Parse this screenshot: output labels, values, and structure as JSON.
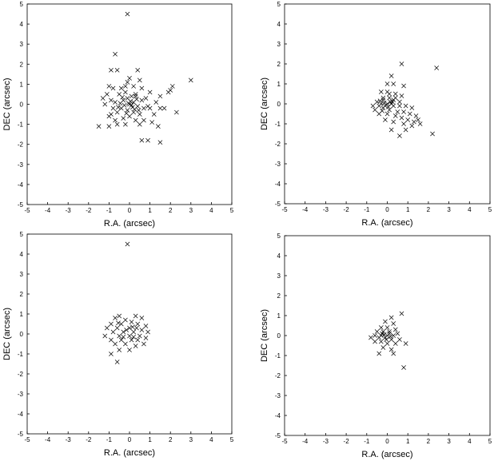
{
  "chart_data": [
    {
      "type": "scatter",
      "xlabel": "R.A. (arcsec)",
      "ylabel": "DEC (arcsec)",
      "xlim": [
        -5,
        5
      ],
      "ylim": [
        -5,
        5
      ],
      "xticks": [
        "-5",
        "-4",
        "-3",
        "-2",
        "-1",
        "0",
        "1",
        "2",
        "3",
        "4",
        "5"
      ],
      "yticks": [
        "-5",
        "-4",
        "-3",
        "-2",
        "-1",
        "0",
        "1",
        "2",
        "3",
        "4",
        "5"
      ],
      "marker": "x",
      "grid": false,
      "points": [
        [
          -0.1,
          4.5
        ],
        [
          -0.7,
          2.5
        ],
        [
          -0.9,
          1.7
        ],
        [
          -0.6,
          1.7
        ],
        [
          0.4,
          1.7
        ],
        [
          3.0,
          1.2
        ],
        [
          0.0,
          1.3
        ],
        [
          -0.1,
          1.1
        ],
        [
          0.5,
          1.2
        ],
        [
          -1.0,
          0.9
        ],
        [
          -0.8,
          0.8
        ],
        [
          -0.4,
          0.8
        ],
        [
          0.2,
          0.9
        ],
        [
          0.6,
          0.8
        ],
        [
          1.0,
          0.6
        ],
        [
          2.1,
          0.9
        ],
        [
          1.9,
          0.6
        ],
        [
          2.0,
          0.7
        ],
        [
          1.5,
          0.4
        ],
        [
          1.3,
          0.1
        ],
        [
          1.7,
          -0.2
        ],
        [
          1.5,
          -0.2
        ],
        [
          2.3,
          -0.4
        ],
        [
          1.0,
          -0.2
        ],
        [
          0.9,
          -0.1
        ],
        [
          0.6,
          0.2
        ],
        [
          0.3,
          0.5
        ],
        [
          0.1,
          0.4
        ],
        [
          -0.2,
          0.6
        ],
        [
          -0.5,
          0.5
        ],
        [
          -1.1,
          0.5
        ],
        [
          -0.9,
          0.2
        ],
        [
          -1.2,
          0.0
        ],
        [
          -0.7,
          0.1
        ],
        [
          -0.3,
          0.2
        ],
        [
          0.0,
          0.0
        ],
        [
          0.2,
          0.1
        ],
        [
          0.4,
          -0.1
        ],
        [
          0.7,
          -0.2
        ],
        [
          0.5,
          -0.5
        ],
        [
          0.2,
          -0.4
        ],
        [
          -0.1,
          -0.3
        ],
        [
          -0.4,
          -0.2
        ],
        [
          -0.6,
          -0.4
        ],
        [
          -0.9,
          -0.5
        ],
        [
          -1.0,
          -0.6
        ],
        [
          -0.7,
          -0.8
        ],
        [
          -0.3,
          -0.7
        ],
        [
          0.0,
          -0.6
        ],
        [
          0.3,
          -0.8
        ],
        [
          0.7,
          -0.8
        ],
        [
          1.1,
          -0.9
        ],
        [
          1.4,
          -1.1
        ],
        [
          -1.5,
          -1.1
        ],
        [
          -1.0,
          -1.1
        ],
        [
          -0.6,
          -1.0
        ],
        [
          -0.2,
          -1.0
        ],
        [
          0.5,
          -1.0
        ],
        [
          0.6,
          -1.8
        ],
        [
          0.9,
          -1.8
        ],
        [
          1.5,
          -1.9
        ],
        [
          -0.1,
          0.3
        ],
        [
          0.15,
          -0.15
        ],
        [
          -0.25,
          -0.05
        ],
        [
          0.35,
          0.25
        ],
        [
          -0.45,
          0.05
        ],
        [
          0.05,
          0.15
        ],
        [
          -0.15,
          -0.45
        ],
        [
          0.25,
          -0.25
        ],
        [
          -0.55,
          -0.15
        ],
        [
          0.45,
          -0.3
        ],
        [
          -0.35,
          0.35
        ],
        [
          0.1,
          -0.05
        ],
        [
          -0.05,
          0.05
        ],
        [
          0.3,
          0.4
        ],
        [
          -0.8,
          -0.2
        ],
        [
          0.8,
          0.3
        ],
        [
          -0.2,
          0.9
        ],
        [
          1.2,
          -0.5
        ],
        [
          -1.3,
          0.3
        ]
      ]
    },
    {
      "type": "scatter",
      "xlabel": "R.A. (arcsec)",
      "ylabel": "DEC (arcsec)",
      "xlim": [
        -5,
        5
      ],
      "ylim": [
        -5,
        5
      ],
      "xticks": [
        "-5",
        "-4",
        "-3",
        "-2",
        "-1",
        "0",
        "1",
        "2",
        "3",
        "4",
        "5"
      ],
      "yticks": [
        "-5",
        "-4",
        "-3",
        "-2",
        "-1",
        "0",
        "1",
        "2",
        "3",
        "4",
        "5"
      ],
      "marker": "x",
      "grid": false,
      "points": [
        [
          2.4,
          1.8
        ],
        [
          0.7,
          2.0
        ],
        [
          0.2,
          1.4
        ],
        [
          0.0,
          1.0
        ],
        [
          0.3,
          1.0
        ],
        [
          0.8,
          0.9
        ],
        [
          -0.3,
          0.6
        ],
        [
          0.0,
          0.6
        ],
        [
          0.4,
          0.5
        ],
        [
          0.7,
          0.4
        ],
        [
          -0.2,
          0.3
        ],
        [
          0.1,
          0.3
        ],
        [
          0.3,
          0.2
        ],
        [
          0.6,
          0.1
        ],
        [
          -0.5,
          0.1
        ],
        [
          -0.3,
          0.0
        ],
        [
          0.0,
          0.0
        ],
        [
          0.2,
          0.0
        ],
        [
          -0.7,
          -0.1
        ],
        [
          -0.4,
          -0.1
        ],
        [
          -0.1,
          -0.1
        ],
        [
          0.3,
          -0.1
        ],
        [
          0.6,
          -0.1
        ],
        [
          0.9,
          -0.1
        ],
        [
          1.2,
          -0.2
        ],
        [
          -0.6,
          -0.3
        ],
        [
          -0.2,
          -0.2
        ],
        [
          0.1,
          -0.3
        ],
        [
          0.5,
          -0.4
        ],
        [
          0.8,
          -0.4
        ],
        [
          1.1,
          -0.5
        ],
        [
          1.4,
          -0.6
        ],
        [
          -0.4,
          -0.5
        ],
        [
          0.0,
          -0.5
        ],
        [
          0.4,
          -0.6
        ],
        [
          0.7,
          -0.7
        ],
        [
          1.0,
          -0.8
        ],
        [
          1.3,
          -0.9
        ],
        [
          1.5,
          -0.8
        ],
        [
          -0.1,
          -0.8
        ],
        [
          0.3,
          -0.9
        ],
        [
          0.8,
          -1.0
        ],
        [
          1.2,
          -1.1
        ],
        [
          1.6,
          -1.0
        ],
        [
          0.2,
          -1.3
        ],
        [
          0.9,
          -1.3
        ],
        [
          2.2,
          -1.5
        ],
        [
          0.6,
          -1.6
        ],
        [
          -0.2,
          0.2
        ],
        [
          0.15,
          0.1
        ],
        [
          -0.35,
          0.15
        ],
        [
          0.05,
          -0.15
        ],
        [
          -0.15,
          0.05
        ],
        [
          0.25,
          0.1
        ],
        [
          -0.25,
          -0.35
        ],
        [
          0.4,
          0.3
        ],
        [
          0.1,
          0.5
        ],
        [
          -0.05,
          -0.05
        ]
      ]
    },
    {
      "type": "scatter",
      "xlabel": "R.A. (arcsec)",
      "ylabel": "DEC (arcsec)",
      "xlim": [
        -5,
        5
      ],
      "ylim": [
        -5,
        5
      ],
      "xticks": [
        "-5",
        "-4",
        "-3",
        "-2",
        "-1",
        "0",
        "1",
        "2",
        "3",
        "4",
        "5"
      ],
      "yticks": [
        "-5",
        "-4",
        "-3",
        "-2",
        "-1",
        "0",
        "1",
        "2",
        "3",
        "4",
        "5"
      ],
      "marker": "x",
      "grid": false,
      "points": [
        [
          -0.1,
          4.5
        ],
        [
          -0.5,
          0.9
        ],
        [
          0.3,
          0.9
        ],
        [
          -0.7,
          0.8
        ],
        [
          0.6,
          0.8
        ],
        [
          -0.2,
          0.7
        ],
        [
          0.1,
          0.6
        ],
        [
          -0.9,
          0.5
        ],
        [
          -0.4,
          0.5
        ],
        [
          0.4,
          0.5
        ],
        [
          0.8,
          0.4
        ],
        [
          -1.1,
          0.3
        ],
        [
          -0.6,
          0.3
        ],
        [
          0.0,
          0.3
        ],
        [
          0.6,
          0.2
        ],
        [
          0.9,
          0.1
        ],
        [
          -0.8,
          0.1
        ],
        [
          -0.3,
          0.1
        ],
        [
          0.2,
          0.1
        ],
        [
          -1.2,
          -0.1
        ],
        [
          -0.5,
          -0.1
        ],
        [
          0.0,
          -0.1
        ],
        [
          0.5,
          -0.1
        ],
        [
          0.8,
          -0.2
        ],
        [
          -0.9,
          -0.3
        ],
        [
          -0.4,
          -0.3
        ],
        [
          0.1,
          -0.3
        ],
        [
          0.4,
          -0.3
        ],
        [
          -0.7,
          -0.5
        ],
        [
          -0.2,
          -0.5
        ],
        [
          0.3,
          -0.6
        ],
        [
          0.7,
          -0.5
        ],
        [
          -0.5,
          -0.8
        ],
        [
          0.0,
          -0.8
        ],
        [
          -0.9,
          -1.0
        ],
        [
          -0.6,
          -1.4
        ],
        [
          -0.15,
          0.2
        ],
        [
          0.2,
          -0.15
        ],
        [
          -0.3,
          -0.15
        ],
        [
          0.35,
          0.3
        ],
        [
          -0.55,
          0.55
        ],
        [
          0.15,
          0.35
        ]
      ]
    },
    {
      "type": "scatter",
      "xlabel": "R.A. (arcsec)",
      "ylabel": "DEC (arcsec)",
      "xlim": [
        -5,
        5
      ],
      "ylim": [
        -5,
        5
      ],
      "xticks": [
        "-5",
        "-4",
        "-3",
        "-2",
        "-1",
        "0",
        "1",
        "2",
        "3",
        "4",
        "5"
      ],
      "yticks": [
        "-5",
        "-4",
        "-3",
        "-2",
        "-1",
        "0",
        "1",
        "2",
        "3",
        "4",
        "5"
      ],
      "marker": "x",
      "grid": false,
      "points": [
        [
          0.7,
          1.1
        ],
        [
          0.2,
          0.9
        ],
        [
          -0.1,
          0.7
        ],
        [
          0.3,
          0.6
        ],
        [
          -0.3,
          0.4
        ],
        [
          0.0,
          0.4
        ],
        [
          0.4,
          0.3
        ],
        [
          -0.5,
          0.2
        ],
        [
          -0.2,
          0.2
        ],
        [
          0.1,
          0.2
        ],
        [
          0.5,
          0.1
        ],
        [
          -0.6,
          0.0
        ],
        [
          -0.3,
          0.0
        ],
        [
          0.0,
          0.0
        ],
        [
          0.3,
          0.0
        ],
        [
          -0.8,
          -0.1
        ],
        [
          -0.4,
          -0.1
        ],
        [
          -0.1,
          -0.1
        ],
        [
          0.2,
          -0.2
        ],
        [
          0.6,
          -0.2
        ],
        [
          -0.6,
          -0.3
        ],
        [
          -0.3,
          -0.3
        ],
        [
          0.0,
          -0.4
        ],
        [
          0.4,
          -0.4
        ],
        [
          0.9,
          -0.4
        ],
        [
          -0.2,
          -0.6
        ],
        [
          0.2,
          -0.7
        ],
        [
          -0.4,
          -0.9
        ],
        [
          0.3,
          -0.9
        ],
        [
          0.8,
          -1.6
        ],
        [
          -0.15,
          0.05
        ],
        [
          0.1,
          0.1
        ],
        [
          -0.05,
          -0.2
        ],
        [
          0.15,
          -0.05
        ],
        [
          -0.25,
          0.1
        ]
      ]
    }
  ]
}
